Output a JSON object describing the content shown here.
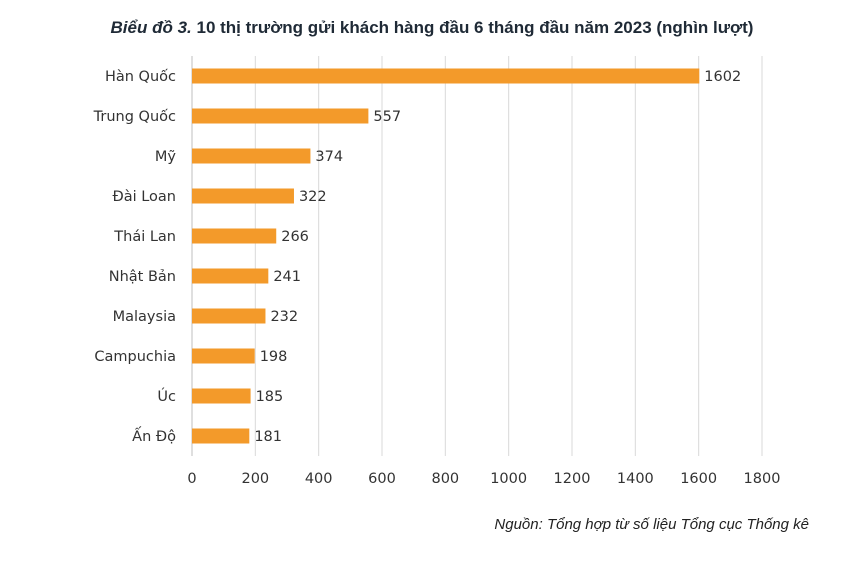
{
  "title": {
    "prefix": "Biểu đồ 3.",
    "text": "10 thị trường gửi khách hàng đầu 6 tháng đầu năm 2023 (nghìn lượt)"
  },
  "source": "Nguồn: Tổng hợp từ số liệu Tổng cục Thống kê",
  "chart_data": {
    "type": "bar",
    "orientation": "horizontal",
    "title": "Biểu đồ 3. 10 thị trường gửi khách hàng đầu 6 tháng đầu năm 2023 (nghìn lượt)",
    "categories": [
      "Hàn Quốc",
      "Trung Quốc",
      "Mỹ",
      "Đài Loan",
      "Thái Lan",
      "Nhật Bản",
      "Malaysia",
      "Campuchia",
      "Úc",
      "Ấn Độ"
    ],
    "values": [
      1602,
      557,
      374,
      322,
      266,
      241,
      232,
      198,
      185,
      181
    ],
    "xlim": [
      0,
      1800
    ],
    "xticks": [
      0,
      200,
      400,
      600,
      800,
      1000,
      1200,
      1400,
      1600,
      1800
    ],
    "grid": "vertical",
    "legend": "none",
    "bar_color": "#F39A2A",
    "grid_color": "#d9d9d9"
  }
}
